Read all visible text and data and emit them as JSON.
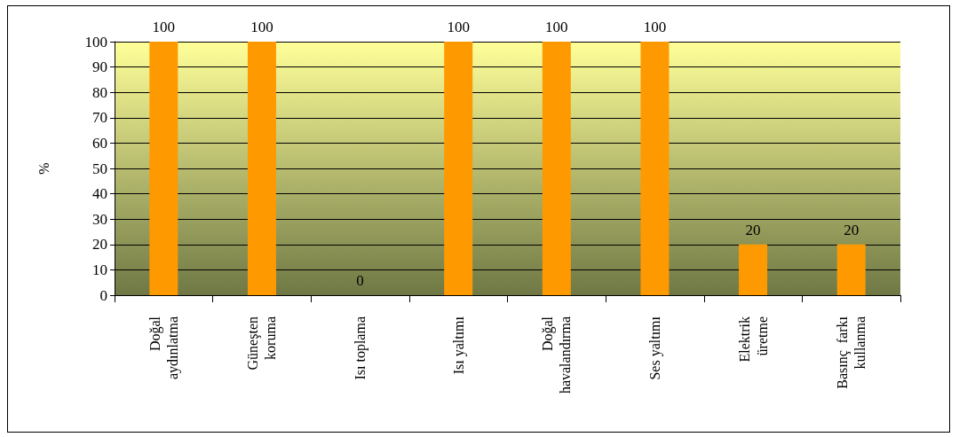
{
  "chart_data": {
    "type": "bar",
    "ylabel": "%",
    "categories": [
      "Doğal aydınlatma",
      "Güneşten koruma",
      "Isı toplama",
      "Isı yaltımı",
      "Doğal havalandırma",
      "Ses yaltımı",
      "Elektrik üretme",
      "Basınç  farkı kullanma"
    ],
    "values": [
      100,
      100,
      0,
      100,
      100,
      100,
      20,
      20
    ],
    "color": "#ff9900",
    "ylim": [
      0,
      100
    ],
    "yticks": [
      0,
      10,
      20,
      30,
      40,
      50,
      60,
      70,
      80,
      90,
      100
    ],
    "grid": "y",
    "data_labels": true
  }
}
